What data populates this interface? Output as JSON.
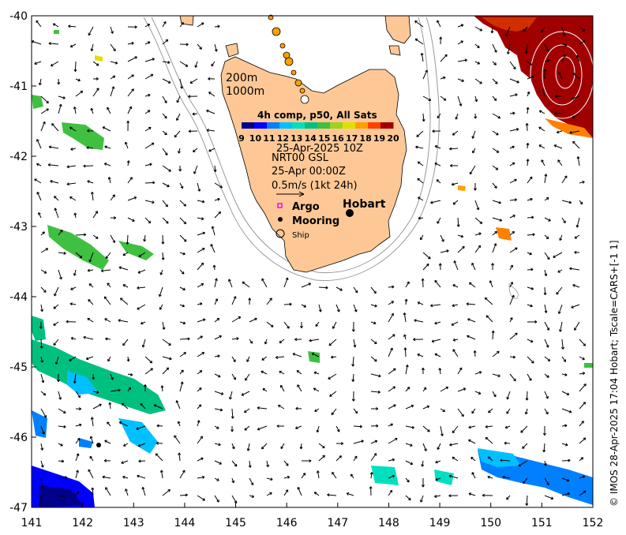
{
  "x_ticks": [
    "141",
    "142",
    "143",
    "144",
    "145",
    "146",
    "147",
    "148",
    "149",
    "150",
    "151",
    "152"
  ],
  "y_ticks": [
    "-40",
    "-41",
    "-42",
    "-43",
    "-44",
    "-45",
    "-46",
    "-47"
  ],
  "colorbar": {
    "title": "4h comp, p50, All Sats",
    "labels": [
      "9",
      "10",
      "11",
      "12",
      "13",
      "14",
      "15",
      "16",
      "17",
      "18",
      "19",
      "20"
    ],
    "colors": [
      "#00008b",
      "#0000ff",
      "#0080ff",
      "#00c0ff",
      "#00e0c0",
      "#00c080",
      "#40c040",
      "#a0d020",
      "#e0e000",
      "#ffa000",
      "#ff4000",
      "#a00000"
    ]
  },
  "legend": {
    "date": "25-Apr-2025 10Z",
    "product": "NRT00 GSL",
    "vector_time": "25-Apr 00:00Z",
    "vector_scale": "0.5m/s (1kt 24h)",
    "argo": "Argo",
    "mooring": "Mooring",
    "ship": "Ship"
  },
  "depth_labels": [
    "200m",
    "1000m"
  ],
  "place_label": "Hobart",
  "side_caption": "© IMOS 28-Apr-2025 17:04 Hobart; Tscale=CARS+[-1 1]",
  "colors": {
    "land": "#fdc896",
    "warm_sst": "#a00000",
    "isobath": "#999999"
  }
}
